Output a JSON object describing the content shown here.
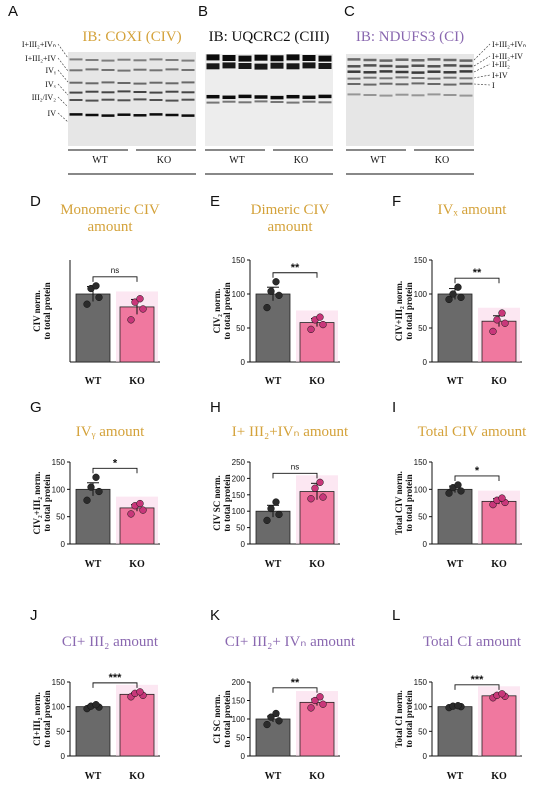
{
  "colors": {
    "wt_bar": "#6a6a6a",
    "ko_bar": "#f0789f",
    "ko_point": "#c8377a",
    "ko_glow": "#f9d0e6",
    "civ_title": "#d4a23a",
    "ci_title": "#8a68b0",
    "ciii_title": "#111111"
  },
  "blots": [
    {
      "letter": "A",
      "title": "IB: COXI (CIV)",
      "title_color": "#d4a23a",
      "band_labels": [
        "I+III₂+IVₙ",
        "I+III₂+IV",
        "IVᵧ",
        "IVₓ",
        "III₂/IV₂",
        "IV"
      ],
      "group_labels": [
        "WT",
        "KO"
      ]
    },
    {
      "letter": "B",
      "title": "IB: UQCRC2 (CIII)",
      "title_color": "#111111",
      "band_labels": [],
      "group_labels": [
        "WT",
        "KO"
      ]
    },
    {
      "letter": "C",
      "title": "IB: NDUFS3 (CI)",
      "title_color": "#8a68b0",
      "band_labels": [
        "I+III₂+IVₙ",
        "I+III₂+IV",
        "I+III₂",
        "I+IV",
        "I"
      ],
      "group_labels": [
        "WT",
        "KO"
      ]
    }
  ],
  "chart_data": [
    {
      "letter": "D",
      "type": "bar",
      "title": "Monomeric CIV amount",
      "title_color": "#d4a23a",
      "ylabel": "CIV norm. to total protein",
      "categories": [
        "WT",
        "KO"
      ],
      "values": [
        100,
        81
      ],
      "errors": [
        11,
        11
      ],
      "points": [
        [
          85,
          95,
          108,
          112
        ],
        [
          62,
          78,
          88,
          93
        ]
      ],
      "significance": "ns",
      "ylim": [
        0,
        150
      ],
      "yticks": []
    },
    {
      "letter": "E",
      "type": "bar",
      "title": "Dimeric CIV amount",
      "title_color": "#d4a23a",
      "ylabel": "CIV₂ norm. to total protein",
      "categories": [
        "WT",
        "KO"
      ],
      "values": [
        100,
        58
      ],
      "errors": [
        10,
        6
      ],
      "points": [
        [
          80,
          98,
          104,
          118
        ],
        [
          48,
          55,
          62,
          66
        ]
      ],
      "significance": "**",
      "ylim": [
        0,
        150
      ],
      "yticks": [
        0,
        50,
        100,
        150
      ]
    },
    {
      "letter": "F",
      "type": "bar",
      "title": "IVₓ amount",
      "title_color": "#d4a23a",
      "ylabel": "CIV+III₂ norm. to total protein",
      "categories": [
        "WT",
        "KO"
      ],
      "values": [
        100,
        60
      ],
      "errors": [
        8,
        8
      ],
      "points": [
        [
          92,
          95,
          100,
          110
        ],
        [
          45,
          57,
          62,
          72
        ]
      ],
      "significance": "**",
      "ylim": [
        0,
        150
      ],
      "yticks": [
        0,
        50,
        100,
        150
      ]
    },
    {
      "letter": "G",
      "type": "bar",
      "title": "IVᵧ amount",
      "title_color": "#d4a23a",
      "ylabel": "CIV₂+III₂ norm. to total protein",
      "categories": [
        "WT",
        "KO"
      ],
      "values": [
        100,
        66
      ],
      "errors": [
        12,
        6
      ],
      "points": [
        [
          80,
          96,
          104,
          122
        ],
        [
          55,
          62,
          70,
          74
        ]
      ],
      "significance": "*",
      "ylim": [
        0,
        150
      ],
      "yticks": [
        0,
        50,
        100,
        150
      ]
    },
    {
      "letter": "H",
      "type": "bar",
      "title": "I+ III₂+IVₙ amount",
      "title_color": "#d4a23a",
      "ylabel": "CIV SC norm. to total protein",
      "categories": [
        "WT",
        "KO"
      ],
      "values": [
        100,
        160
      ],
      "errors": [
        18,
        25
      ],
      "points": [
        [
          72,
          90,
          108,
          128
        ],
        [
          138,
          143,
          170,
          188
        ]
      ],
      "significance": "ns",
      "ylim": [
        0,
        250
      ],
      "yticks": [
        0,
        50,
        100,
        150,
        200,
        250
      ]
    },
    {
      "letter": "I",
      "type": "bar",
      "title": "Total CIV amount",
      "title_color": "#d4a23a",
      "ylabel": "Total CIV norm. to total protein",
      "categories": [
        "WT",
        "KO"
      ],
      "values": [
        100,
        78
      ],
      "errors": [
        6,
        5
      ],
      "points": [
        [
          93,
          97,
          103,
          108
        ],
        [
          72,
          76,
          80,
          84
        ]
      ],
      "significance": "*",
      "ylim": [
        0,
        150
      ],
      "yticks": [
        0,
        50,
        100,
        150
      ]
    },
    {
      "letter": "J",
      "type": "bar",
      "title": "CI+ III₂ amount",
      "title_color": "#8a68b0",
      "ylabel": "CI+III₂ norm. to total protein",
      "categories": [
        "WT",
        "KO"
      ],
      "values": [
        100,
        125
      ],
      "errors": [
        3,
        3
      ],
      "points": [
        [
          96,
          99,
          101,
          104
        ],
        [
          120,
          123,
          127,
          130
        ]
      ],
      "significance": "***",
      "ylim": [
        0,
        150
      ],
      "yticks": [
        0,
        50,
        100,
        150
      ]
    },
    {
      "letter": "K",
      "type": "bar",
      "title": "CI+ III₂+ IVₙ amount",
      "title_color": "#8a68b0",
      "ylabel": "CI SC norm. to total protein",
      "categories": [
        "WT",
        "KO"
      ],
      "values": [
        100,
        145
      ],
      "errors": [
        8,
        9
      ],
      "points": [
        [
          85,
          95,
          105,
          115
        ],
        [
          130,
          140,
          150,
          160
        ]
      ],
      "significance": "**",
      "ylim": [
        0,
        200
      ],
      "yticks": [
        0,
        50,
        100,
        150,
        200
      ]
    },
    {
      "letter": "L",
      "type": "bar",
      "title": "Total CI amount",
      "title_color": "#8a68b0",
      "ylabel": "Total CI norm. to total protein",
      "categories": [
        "WT",
        "KO"
      ],
      "values": [
        100,
        122
      ],
      "errors": [
        2,
        3
      ],
      "points": [
        [
          98,
          100,
          101,
          102
        ],
        [
          118,
          121,
          123,
          126
        ]
      ],
      "significance": "***",
      "ylim": [
        0,
        150
      ],
      "yticks": [
        0,
        50,
        100,
        150
      ]
    }
  ]
}
